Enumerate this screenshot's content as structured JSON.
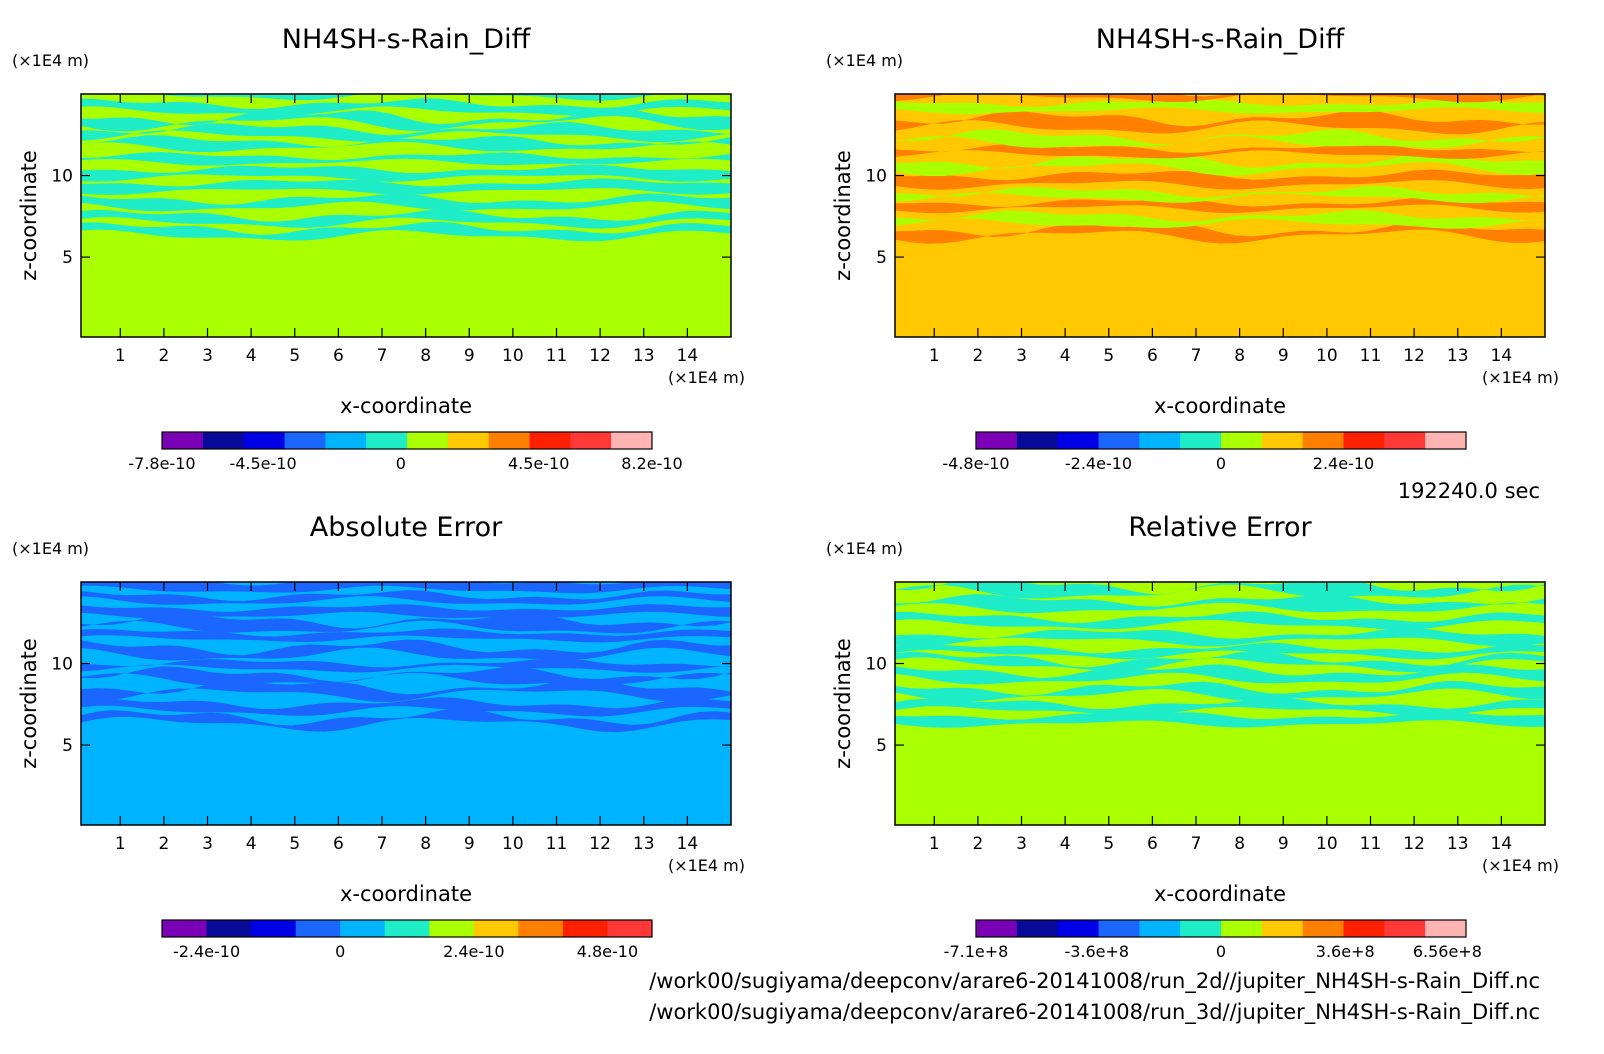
{
  "time_label": "192240.0 sec",
  "files": [
    "/work00/sugiyama/deepconv/arare6-20141008/run_2d//jupiter_NH4SH-s-Rain_Diff.nc",
    "/work00/sugiyama/deepconv/arare6-20141008/run_3d//jupiter_NH4SH-s-Rain_Diff.nc"
  ],
  "colors": {
    "palette": [
      "#7a00b5",
      "#0a0a9a",
      "#0000e6",
      "#1a66ff",
      "#00b4ff",
      "#1fedc8",
      "#aaff00",
      "#ffc800",
      "#ff7f00",
      "#ff2000",
      "#ff3838",
      "#ffb4b4"
    ]
  },
  "chart_data": [
    {
      "type": "heatmap",
      "title": "NH4SH-s-Rain_Diff",
      "xlabel": "x-coordinate",
      "ylabel": "z-coordinate",
      "x_unit": "(×1E4 m)",
      "y_unit": "(×1E4 m)",
      "xlim": [
        0.1,
        15
      ],
      "ylim": [
        0.1,
        15
      ],
      "x_ticks": [
        1,
        2,
        3,
        4,
        5,
        6,
        7,
        8,
        9,
        10,
        11,
        12,
        13,
        14
      ],
      "y_ticks": [
        5,
        10
      ],
      "background_color": "#aaff00",
      "band_colors": [
        "#1fedc8"
      ],
      "colorbar_colors": [
        "#7a00b5",
        "#0a0a9a",
        "#0000e6",
        "#1a66ff",
        "#00b4ff",
        "#1fedc8",
        "#aaff00",
        "#ffc800",
        "#ff7f00",
        "#ff2000",
        "#ff3838",
        "#ffb4b4"
      ],
      "colorbar_labels": [
        {
          "label": "-7.8e-10",
          "value": -7.8e-10
        },
        {
          "label": "-4.5e-10",
          "value": -4.5e-10
        },
        {
          "label": "0",
          "value": 0
        },
        {
          "label": "4.5e-10",
          "value": 4.5e-10
        },
        {
          "label": "8.2e-10",
          "value": 8.2e-10
        }
      ],
      "colorbar_range": [
        -7.8e-10,
        8.2e-10
      ]
    },
    {
      "type": "heatmap",
      "title": "NH4SH-s-Rain_Diff",
      "xlabel": "x-coordinate",
      "ylabel": "z-coordinate",
      "x_unit": "(×1E4 m)",
      "y_unit": "(×1E4 m)",
      "xlim": [
        0.1,
        15
      ],
      "ylim": [
        0.1,
        15
      ],
      "x_ticks": [
        1,
        2,
        3,
        4,
        5,
        6,
        7,
        8,
        9,
        10,
        11,
        12,
        13,
        14
      ],
      "y_ticks": [
        5,
        10
      ],
      "background_color": "#ffc800",
      "band_colors": [
        "#ff7f00",
        "#aaff00"
      ],
      "colorbar_colors": [
        "#7a00b5",
        "#0a0a9a",
        "#0000e6",
        "#1a66ff",
        "#00b4ff",
        "#1fedc8",
        "#aaff00",
        "#ffc800",
        "#ff7f00",
        "#ff2000",
        "#ff3838",
        "#ffb4b4"
      ],
      "colorbar_labels": [
        {
          "label": "-4.8e-10",
          "value": -4.8e-10
        },
        {
          "label": "-2.4e-10",
          "value": -2.4e-10
        },
        {
          "label": "0",
          "value": 0
        },
        {
          "label": "2.4e-10",
          "value": 2.4e-10
        }
      ],
      "colorbar_range": [
        -4.8e-10,
        4.8e-10
      ]
    },
    {
      "type": "heatmap",
      "title": "Absolute Error",
      "xlabel": "x-coordinate",
      "ylabel": "z-coordinate",
      "x_unit": "(×1E4 m)",
      "y_unit": "(×1E4 m)",
      "xlim": [
        0.1,
        15
      ],
      "ylim": [
        0.1,
        15
      ],
      "x_ticks": [
        1,
        2,
        3,
        4,
        5,
        6,
        7,
        8,
        9,
        10,
        11,
        12,
        13,
        14
      ],
      "y_ticks": [
        5,
        10
      ],
      "background_color": "#00b4ff",
      "band_colors": [
        "#1a66ff"
      ],
      "colorbar_colors": [
        "#7a00b5",
        "#0a0a9a",
        "#0000e6",
        "#1a66ff",
        "#00b4ff",
        "#1fedc8",
        "#aaff00",
        "#ffc800",
        "#ff7f00",
        "#ff2000",
        "#ff3838"
      ],
      "colorbar_labels": [
        {
          "label": "-2.4e-10",
          "value": -2.4e-10
        },
        {
          "label": "0",
          "value": 0
        },
        {
          "label": "2.4e-10",
          "value": 2.4e-10
        },
        {
          "label": "4.8e-10",
          "value": 4.8e-10
        }
      ],
      "colorbar_range": [
        -3.2e-10,
        5.6e-10
      ]
    },
    {
      "type": "heatmap",
      "title": "Relative Error",
      "xlabel": "x-coordinate",
      "ylabel": "z-coordinate",
      "x_unit": "(×1E4 m)",
      "y_unit": "(×1E4 m)",
      "xlim": [
        0.1,
        15
      ],
      "ylim": [
        0.1,
        15
      ],
      "x_ticks": [
        1,
        2,
        3,
        4,
        5,
        6,
        7,
        8,
        9,
        10,
        11,
        12,
        13,
        14
      ],
      "y_ticks": [
        5,
        10
      ],
      "background_color": "#aaff00",
      "band_colors": [
        "#1fedc8"
      ],
      "colorbar_colors": [
        "#7a00b5",
        "#0a0a9a",
        "#0000e6",
        "#1a66ff",
        "#00b4ff",
        "#1fedc8",
        "#aaff00",
        "#ffc800",
        "#ff7f00",
        "#ff2000",
        "#ff3838",
        "#ffb4b4"
      ],
      "colorbar_labels": [
        {
          "label": "-7.1e+8",
          "value": -710000000.0
        },
        {
          "label": "-3.6e+8",
          "value": -360000000.0
        },
        {
          "label": "0",
          "value": 0
        },
        {
          "label": "3.6e+8",
          "value": 360000000.0
        },
        {
          "label": "6.56e+8",
          "value": 656000000.0
        }
      ],
      "colorbar_range": [
        -710000000.0,
        710000000.0
      ]
    }
  ]
}
